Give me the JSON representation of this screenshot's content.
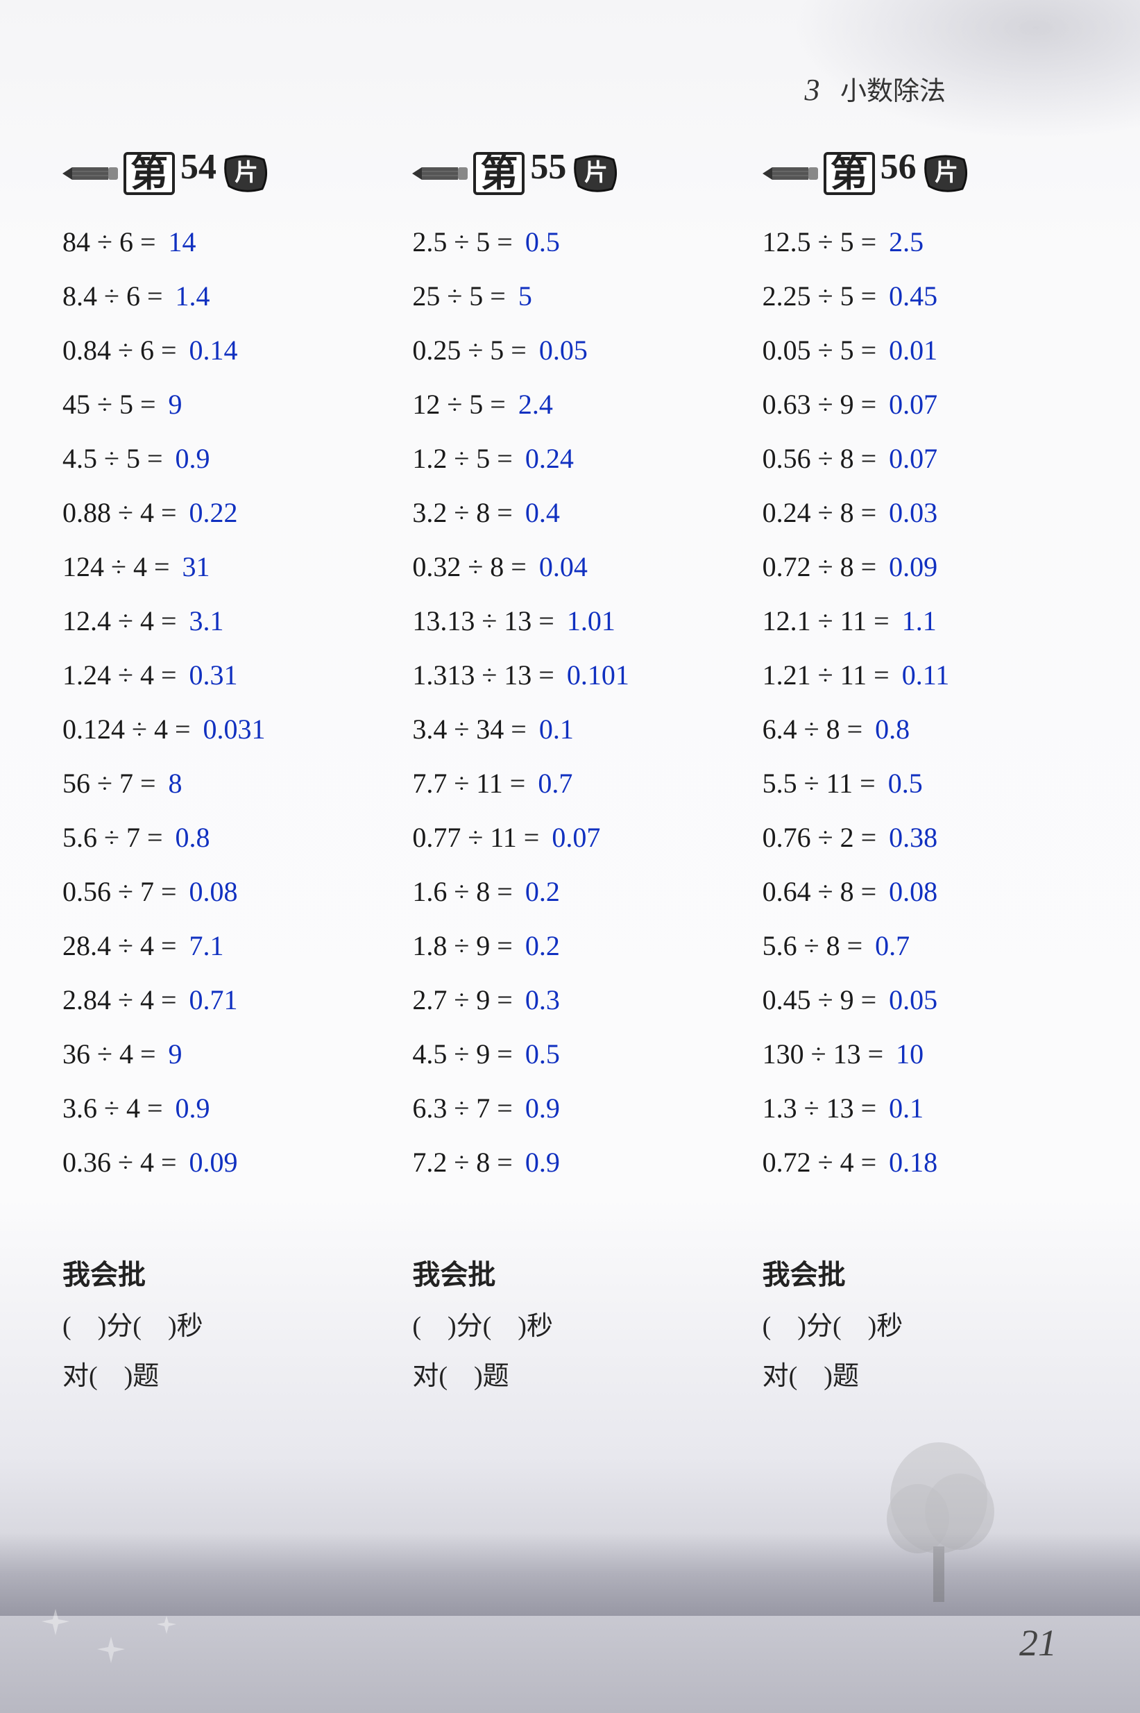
{
  "chapter": {
    "number": "3",
    "title": "小数除法"
  },
  "page_number": "21",
  "colors": {
    "question_text": "#1a1a1a",
    "answer_text": "#1030c0",
    "header_text": "#222222",
    "bg_top": "#f5f5f7",
    "bg_bottom": "#b8b8c2"
  },
  "card_label": {
    "prefix": "第",
    "suffix": "片"
  },
  "footer": {
    "header": "我会批",
    "line1_a": "(　)分(　)秒",
    "line2_a": "对(　)题"
  },
  "columns": [
    {
      "card": "54",
      "problems": [
        {
          "q": "84 ÷ 6 =",
          "a": "14"
        },
        {
          "q": "8.4 ÷ 6 =",
          "a": "1.4"
        },
        {
          "q": "0.84 ÷ 6 =",
          "a": "0.14"
        },
        {
          "q": "45 ÷ 5 =",
          "a": "9"
        },
        {
          "q": "4.5 ÷ 5 =",
          "a": "0.9"
        },
        {
          "q": "0.88 ÷ 4 =",
          "a": "0.22"
        },
        {
          "q": "124 ÷ 4 =",
          "a": "31"
        },
        {
          "q": "12.4 ÷ 4 =",
          "a": "3.1"
        },
        {
          "q": "1.24 ÷ 4 =",
          "a": "0.31"
        },
        {
          "q": "0.124 ÷ 4 =",
          "a": "0.031"
        },
        {
          "q": "56 ÷ 7 =",
          "a": "8"
        },
        {
          "q": "5.6 ÷ 7 =",
          "a": "0.8"
        },
        {
          "q": "0.56 ÷ 7 =",
          "a": "0.08"
        },
        {
          "q": "28.4 ÷ 4 =",
          "a": "7.1"
        },
        {
          "q": "2.84 ÷ 4 =",
          "a": "0.71"
        },
        {
          "q": "36 ÷ 4 =",
          "a": "9"
        },
        {
          "q": "3.6 ÷ 4 =",
          "a": "0.9"
        },
        {
          "q": "0.36 ÷ 4 =",
          "a": "0.09"
        }
      ]
    },
    {
      "card": "55",
      "problems": [
        {
          "q": "2.5 ÷ 5 =",
          "a": "0.5"
        },
        {
          "q": "25 ÷ 5 =",
          "a": "5"
        },
        {
          "q": "0.25 ÷ 5 =",
          "a": "0.05"
        },
        {
          "q": "12 ÷ 5 =",
          "a": "2.4"
        },
        {
          "q": "1.2 ÷ 5 =",
          "a": "0.24"
        },
        {
          "q": "3.2 ÷ 8 =",
          "a": "0.4"
        },
        {
          "q": "0.32 ÷ 8 =",
          "a": "0.04"
        },
        {
          "q": "13.13 ÷ 13 =",
          "a": "1.01"
        },
        {
          "q": "1.313 ÷ 13 =",
          "a": "0.101"
        },
        {
          "q": "3.4 ÷ 34 =",
          "a": "0.1"
        },
        {
          "q": "7.7 ÷ 11 =",
          "a": "0.7"
        },
        {
          "q": "0.77 ÷ 11 =",
          "a": "0.07"
        },
        {
          "q": "1.6 ÷ 8 =",
          "a": "0.2"
        },
        {
          "q": "1.8 ÷ 9 =",
          "a": "0.2"
        },
        {
          "q": "2.7 ÷ 9 =",
          "a": "0.3"
        },
        {
          "q": "4.5 ÷ 9 =",
          "a": "0.5"
        },
        {
          "q": "6.3 ÷ 7 =",
          "a": "0.9"
        },
        {
          "q": "7.2 ÷ 8 =",
          "a": "0.9"
        }
      ]
    },
    {
      "card": "56",
      "problems": [
        {
          "q": "12.5 ÷ 5 =",
          "a": "2.5"
        },
        {
          "q": "2.25 ÷ 5 =",
          "a": "0.45"
        },
        {
          "q": "0.05 ÷ 5 =",
          "a": "0.01"
        },
        {
          "q": "0.63 ÷ 9 =",
          "a": "0.07"
        },
        {
          "q": "0.56 ÷ 8 =",
          "a": "0.07"
        },
        {
          "q": "0.24 ÷ 8 =",
          "a": "0.03"
        },
        {
          "q": "0.72 ÷ 8 =",
          "a": "0.09"
        },
        {
          "q": "12.1 ÷ 11 =",
          "a": "1.1"
        },
        {
          "q": "1.21 ÷ 11 =",
          "a": "0.11"
        },
        {
          "q": "6.4 ÷ 8 =",
          "a": "0.8"
        },
        {
          "q": "5.5 ÷ 11 =",
          "a": "0.5"
        },
        {
          "q": "0.76 ÷ 2 =",
          "a": "0.38"
        },
        {
          "q": "0.64 ÷ 8 =",
          "a": "0.08"
        },
        {
          "q": "5.6 ÷ 8 =",
          "a": "0.7"
        },
        {
          "q": "0.45 ÷ 9 =",
          "a": "0.05"
        },
        {
          "q": "130 ÷ 13 =",
          "a": "10"
        },
        {
          "q": "1.3 ÷ 13 =",
          "a": "0.1"
        },
        {
          "q": "0.72 ÷ 4 =",
          "a": "0.18"
        }
      ]
    }
  ]
}
